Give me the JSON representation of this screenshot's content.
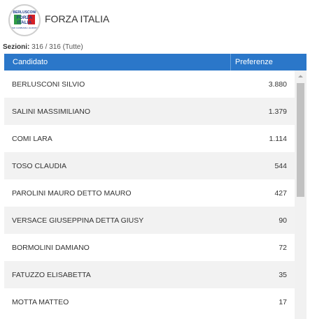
{
  "party": {
    "name": "FORZA ITALIA",
    "logo": {
      "top_text": "BERLUSCONI",
      "main_line1": "FORZA",
      "main_line2": "ITALIA",
      "bottom_text": "PER CAMBIARE L'EUROPA"
    }
  },
  "sezioni": {
    "label": "Sezioni:",
    "value": "316 / 316 (Tutte)"
  },
  "table": {
    "headers": {
      "candidate": "Candidato",
      "votes": "Preferenze"
    },
    "rows": [
      {
        "name": "BERLUSCONI SILVIO",
        "votes": "3.880"
      },
      {
        "name": "SALINI MASSIMILIANO",
        "votes": "1.379"
      },
      {
        "name": "COMI LARA",
        "votes": "1.114"
      },
      {
        "name": "TOSO CLAUDIA",
        "votes": "544"
      },
      {
        "name": "PAROLINI MAURO DETTO MAURO",
        "votes": "427"
      },
      {
        "name": "VERSACE GIUSEPPINA DETTA GIUSY",
        "votes": "90"
      },
      {
        "name": "BORMOLINI DAMIANO",
        "votes": "72"
      },
      {
        "name": "FATUZZO ELISABETTA",
        "votes": "35"
      },
      {
        "name": "MOTTA MATTEO",
        "votes": "17"
      }
    ]
  },
  "colors": {
    "header_bg": "#2b77c9",
    "row_alt": "#f2f2f2",
    "logo_red": "#d62027",
    "logo_green": "#2e9b46",
    "logo_blue": "#1f3e8c"
  },
  "icons": {
    "scroll_up": "chevron-up-icon"
  }
}
